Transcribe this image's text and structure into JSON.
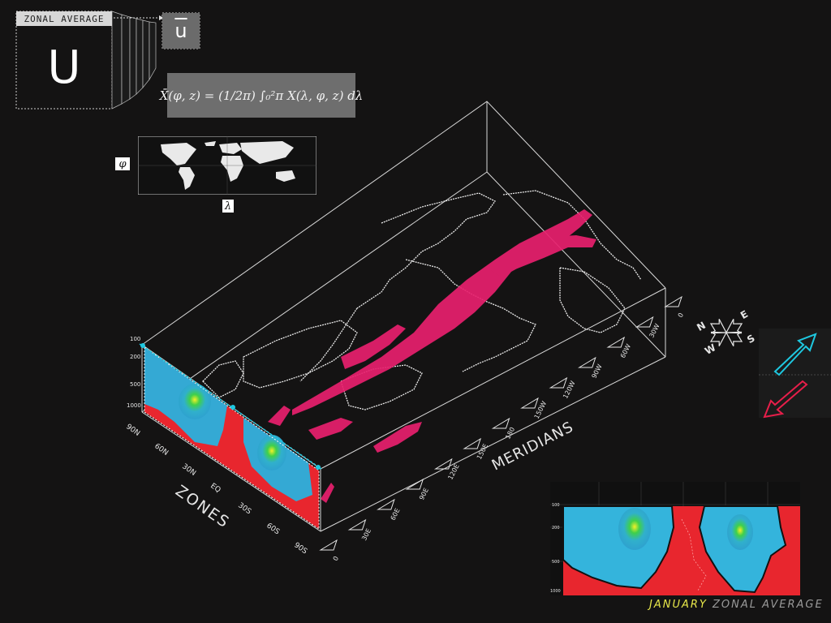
{
  "colors": {
    "background": "#141313",
    "jet": "#e8206e",
    "westerly_cyan": "#36b8d8",
    "easterly_red": "#e8262e",
    "accent_cyan": "#1ec8e0",
    "accent_red": "#e81e4a",
    "caption_yellow": "#e8e84a"
  },
  "zonal_box": {
    "title": "ZONAL AVERAGE",
    "variable": "U",
    "result": "u"
  },
  "formula": "X̄(φ, z) = (1/2π) ∫₀²π X(λ, φ, z) dλ",
  "map_inset": {
    "y_axis": "φ",
    "x_axis": "λ"
  },
  "axes": {
    "zones_label": "ZONES",
    "meridians_label": "MERIDIANS",
    "zone_ticks": [
      "90N",
      "60N",
      "30N",
      "EQ",
      "30S",
      "60S",
      "90S"
    ],
    "meridian_ticks": [
      "0",
      "30E",
      "60E",
      "90E",
      "120E",
      "150E",
      "180",
      "150W",
      "120W",
      "90W",
      "60W",
      "30W",
      "0"
    ],
    "pressure_ticks": [
      "100",
      "200",
      "500",
      "1000"
    ]
  },
  "compass": {
    "n": "N",
    "s": "S",
    "e": "E",
    "w": "W"
  },
  "caption": {
    "month": "JANUARY",
    "text": "ZONAL AVERAGE"
  }
}
